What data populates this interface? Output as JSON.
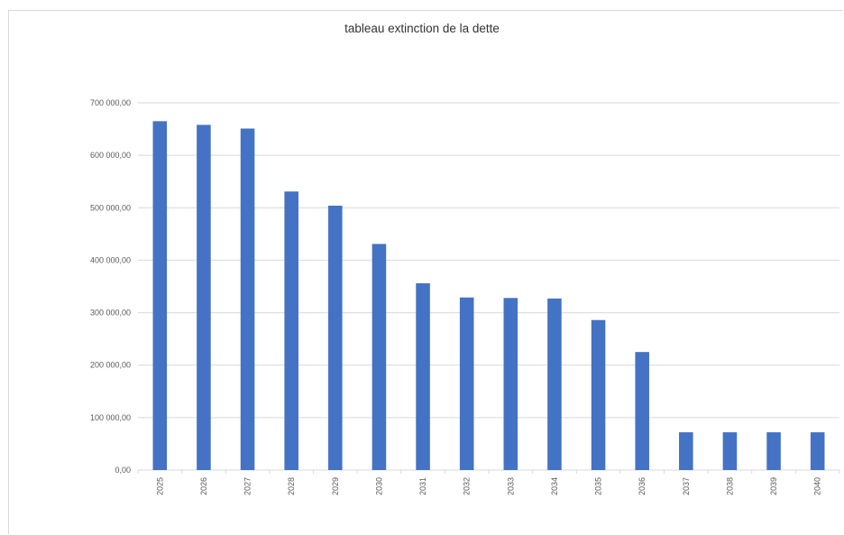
{
  "chart_data": {
    "type": "bar",
    "title": "tableau extinction de la dette",
    "xlabel": "",
    "ylabel": "",
    "categories": [
      "2025",
      "2026",
      "2027",
      "2028",
      "2029",
      "2030",
      "2031",
      "2032",
      "2033",
      "2034",
      "2035",
      "2036",
      "2037",
      "2038",
      "2039",
      "2040"
    ],
    "values": [
      665000,
      658000,
      651000,
      531000,
      504000,
      431000,
      356000,
      329000,
      328000,
      327000,
      286000,
      225000,
      72000,
      72000,
      72000,
      72000
    ],
    "ylim": [
      0,
      700000
    ],
    "yticks": [
      0,
      100000,
      200000,
      300000,
      400000,
      500000,
      600000,
      700000
    ],
    "ytick_labels": [
      "0,00",
      "100 000,00",
      "200 000,00",
      "300 000,00",
      "400 000,00",
      "500 000,00",
      "600 000,00",
      "700 000,00"
    ],
    "grid": true,
    "legend": "none",
    "bar_color": "#4472C4",
    "grid_color": "#d9d9d9"
  }
}
